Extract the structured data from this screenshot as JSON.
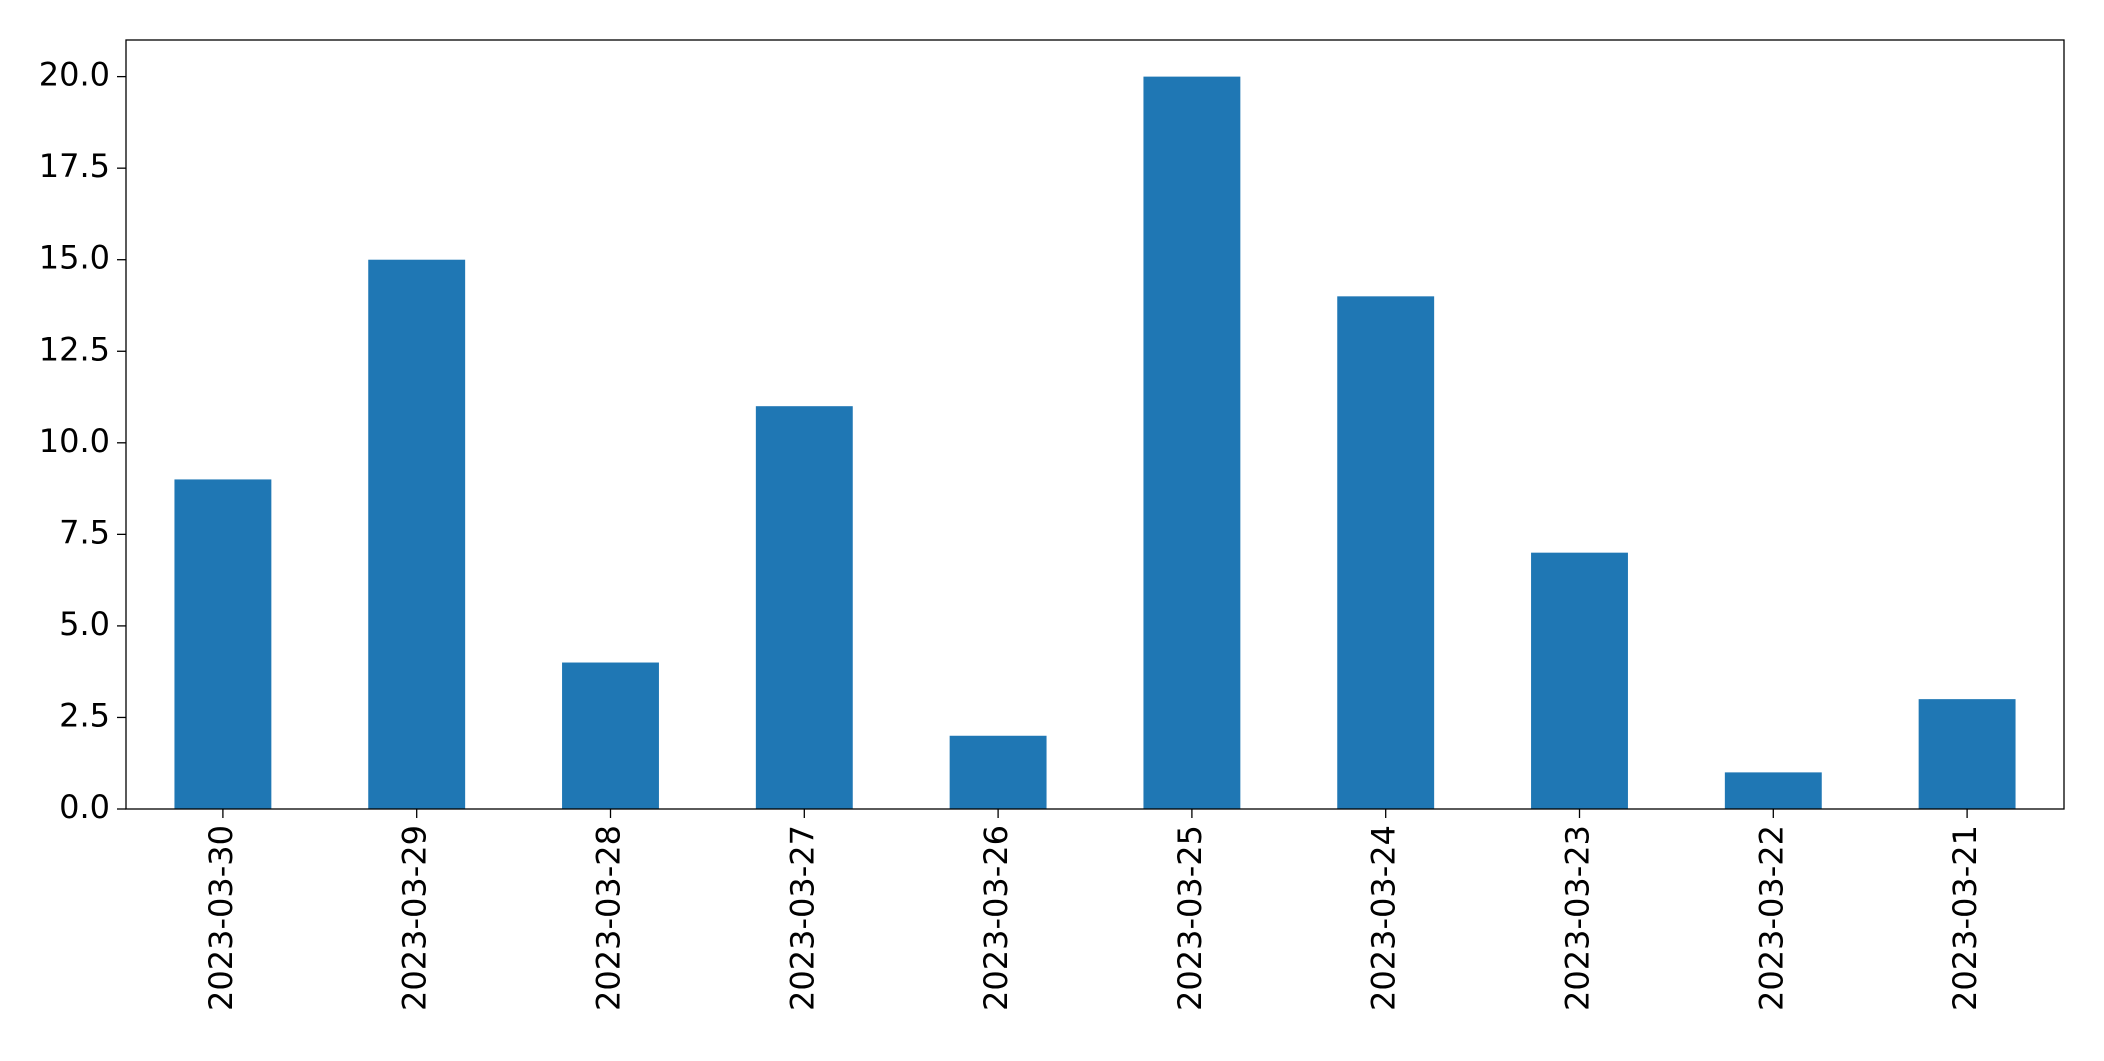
{
  "chart_data": {
    "type": "bar",
    "categories": [
      "2023-03-30",
      "2023-03-29",
      "2023-03-28",
      "2023-03-27",
      "2023-03-26",
      "2023-03-25",
      "2023-03-24",
      "2023-03-23",
      "2023-03-22",
      "2023-03-21"
    ],
    "values": [
      9,
      15,
      4,
      11,
      2,
      20,
      14,
      7,
      1,
      3
    ],
    "color": "#1f77b4",
    "ylim": [
      0,
      21
    ],
    "yticks": [
      {
        "value": 0,
        "label": "0.0"
      },
      2.5,
      {
        "value": 5,
        "label": "5.0"
      },
      7.5,
      {
        "value": 10,
        "label": "10.0"
      },
      12.5,
      {
        "value": 15,
        "label": "15.0"
      },
      17.5,
      {
        "value": 20,
        "label": "20.0"
      }
    ],
    "grid": false
  }
}
